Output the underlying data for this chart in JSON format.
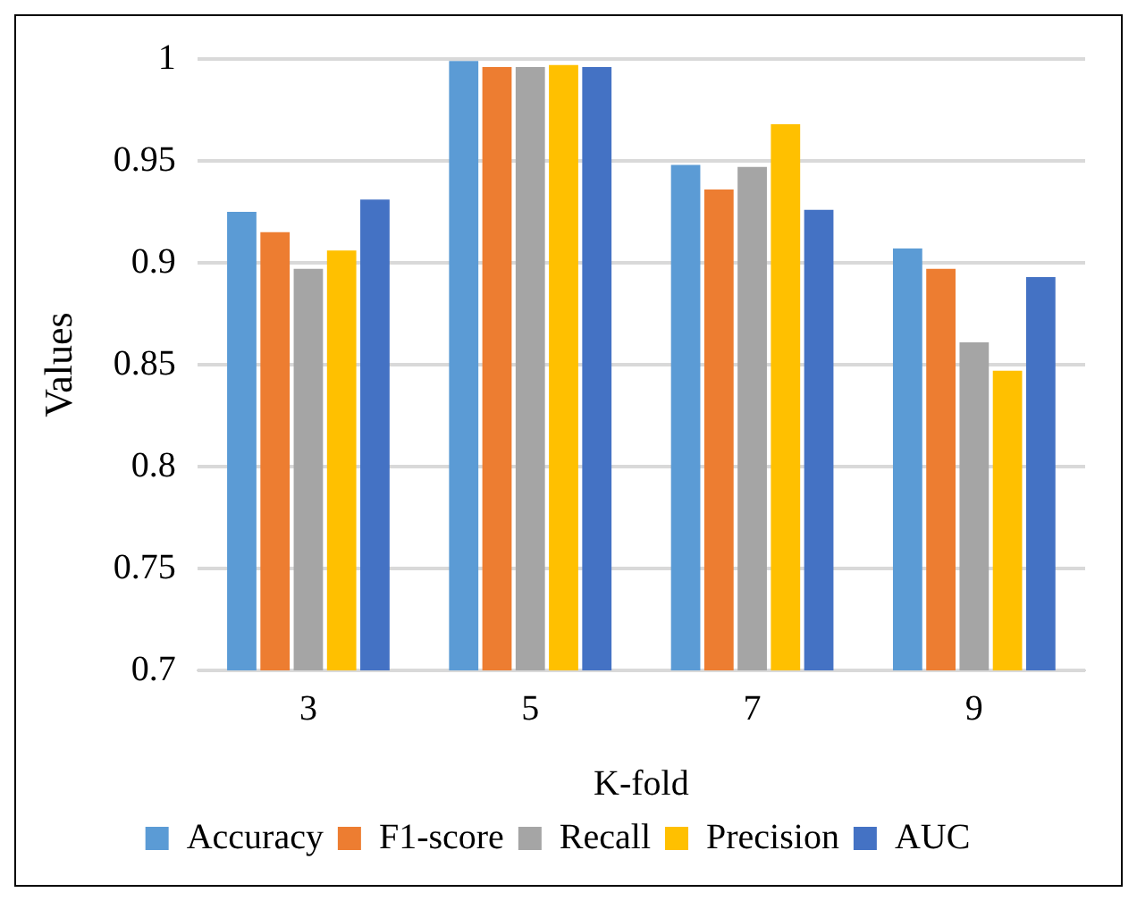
{
  "chart_data": {
    "type": "bar",
    "xlabel": "K-fold",
    "ylabel": "Values",
    "categories": [
      "3",
      "5",
      "7",
      "9"
    ],
    "series": [
      {
        "name": "Accuracy",
        "color": "#5b9bd5",
        "values": [
          0.925,
          0.999,
          0.948,
          0.907
        ]
      },
      {
        "name": "F1-score",
        "color": "#ed7d31",
        "values": [
          0.915,
          0.996,
          0.936,
          0.897
        ]
      },
      {
        "name": "Recall",
        "color": "#a5a5a5",
        "values": [
          0.897,
          0.996,
          0.947,
          0.861
        ]
      },
      {
        "name": "Precision",
        "color": "#ffc000",
        "values": [
          0.906,
          0.997,
          0.968,
          0.847
        ]
      },
      {
        "name": "AUC",
        "color": "#4472c4",
        "values": [
          0.931,
          0.996,
          0.926,
          0.893
        ]
      }
    ],
    "ylim": [
      0.7,
      1
    ],
    "yticks": [
      0.7,
      0.75,
      0.8,
      0.85,
      0.9,
      0.95,
      1
    ],
    "grid": "y",
    "legend": "bottom"
  }
}
